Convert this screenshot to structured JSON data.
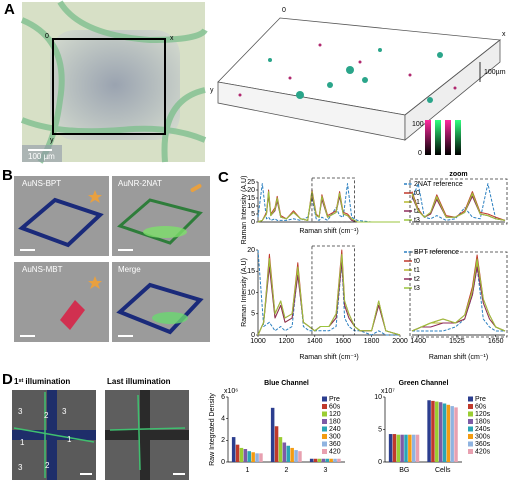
{
  "panels": {
    "A": {
      "label": "A",
      "origin": "0",
      "x_axis": "x",
      "y_axis": "y",
      "scale_bar": "100 µm",
      "volume_origin": "0",
      "volume_x": "x",
      "volume_y": "y",
      "depth_bar": "100µm",
      "colorbar_max": 100,
      "colorbar_min": 0
    },
    "B": {
      "label": "B",
      "tiles": [
        "AuNS-BPT",
        "AuNR-2NAT",
        "AuNS-MBT",
        "Merge"
      ]
    },
    "C": {
      "label": "C"
    },
    "D": {
      "label": "D",
      "images": [
        {
          "title": "1ˢᵗ illumination",
          "regions": [
            3,
            2,
            3,
            1,
            1,
            3,
            2
          ]
        },
        {
          "title": "Last illumination"
        }
      ]
    }
  },
  "chart_data": [
    {
      "type": "line",
      "y_label": "Raman Intensity (A.U)",
      "x_label": "Raman shift (cm⁻¹)",
      "xlim": [
        1000,
        2000
      ],
      "ylim": [
        0,
        25
      ],
      "yticks": [
        0,
        5,
        10,
        15,
        20,
        25
      ],
      "x": [
        1000,
        1030,
        1060,
        1075,
        1090,
        1120,
        1135,
        1160,
        1200,
        1250,
        1300,
        1350,
        1380,
        1410,
        1430,
        1450,
        1490,
        1550,
        1575,
        1600,
        1630,
        1660,
        1700,
        1800,
        1900,
        2000
      ],
      "series": [
        {
          "name": "2NAT reference",
          "color": "#2a7fc0",
          "dashed": true,
          "values": [
            3,
            24,
            2,
            3,
            1,
            2,
            1,
            1,
            1,
            2,
            1,
            3,
            15,
            2,
            1,
            3,
            1,
            9,
            4,
            3,
            24,
            3,
            1,
            0,
            0,
            0
          ]
        },
        {
          "name": "t0",
          "color": "#c0392b",
          "values": [
            0,
            1,
            6,
            20,
            5,
            9,
            16,
            4,
            2,
            7,
            2,
            1,
            20,
            5,
            3,
            17,
            4,
            7,
            19,
            6,
            5,
            2,
            0,
            0,
            0,
            0
          ]
        },
        {
          "name": "t1",
          "color": "#b5b82e",
          "values": [
            0,
            1,
            5,
            18,
            4,
            8,
            14,
            3,
            2,
            6,
            2,
            1,
            18,
            4,
            3,
            15,
            3,
            6,
            17,
            5,
            4,
            2,
            0,
            0,
            0,
            0
          ]
        },
        {
          "name": "t2",
          "color": "#8e2a5a",
          "values": [
            0,
            1,
            5,
            17,
            4,
            7,
            13,
            3,
            2,
            6,
            2,
            1,
            17,
            4,
            3,
            14,
            3,
            6,
            16,
            5,
            4,
            1,
            0,
            0,
            0,
            0
          ]
        },
        {
          "name": "t3",
          "color": "#9bc53d",
          "values": [
            0,
            1,
            5,
            19,
            4,
            8,
            15,
            3,
            2,
            6,
            2,
            1,
            19,
            4,
            3,
            16,
            3,
            6,
            18,
            5,
            4,
            2,
            0,
            0,
            0,
            0
          ]
        }
      ]
    },
    {
      "type": "line",
      "title": "zoom",
      "xlim": [
        1380,
        1680
      ],
      "ylim": [
        0,
        25
      ],
      "x": [
        1380,
        1400,
        1420,
        1440,
        1460,
        1490,
        1520,
        1550,
        1575,
        1600,
        1625,
        1650,
        1680
      ],
      "series": [
        {
          "color": "#2a7fc0",
          "dashed": true,
          "values": [
            14,
            24,
            3,
            2,
            4,
            1,
            2,
            9,
            3,
            2,
            24,
            2,
            1
          ]
        },
        {
          "color": "#c0392b",
          "values": [
            19,
            8,
            3,
            6,
            17,
            4,
            3,
            7,
            19,
            6,
            5,
            3,
            1
          ]
        },
        {
          "color": "#b5b82e",
          "values": [
            17,
            7,
            3,
            5,
            15,
            3,
            3,
            6,
            17,
            5,
            4,
            2,
            1
          ]
        },
        {
          "color": "#8e2a5a",
          "values": [
            16,
            7,
            3,
            5,
            14,
            3,
            3,
            6,
            16,
            5,
            4,
            2,
            1
          ]
        },
        {
          "color": "#9bc53d",
          "values": [
            18,
            7,
            3,
            6,
            16,
            3,
            3,
            6,
            18,
            5,
            4,
            2,
            1
          ]
        }
      ]
    },
    {
      "type": "line",
      "y_label": "Raman Intensity (A.U)",
      "x_label": "Raman shift (cm⁻¹)",
      "xlim": [
        1000,
        2000
      ],
      "ylim": [
        0,
        20
      ],
      "yticks": [
        0,
        5,
        10,
        15,
        20
      ],
      "xticks": [
        1000,
        1200,
        1400,
        1600,
        1800,
        2000
      ],
      "x": [
        1000,
        1040,
        1080,
        1120,
        1160,
        1190,
        1240,
        1280,
        1320,
        1360,
        1400,
        1440,
        1500,
        1550,
        1590,
        1610,
        1640,
        1680,
        1720,
        1800,
        1850,
        1900,
        2000
      ],
      "series": [
        {
          "name": "BPT reference",
          "color": "#2a7fc0",
          "dashed": true,
          "values": [
            20,
            2,
            3,
            1,
            2,
            1,
            2,
            15,
            2,
            1,
            1,
            1,
            1,
            2,
            17,
            4,
            2,
            1,
            1,
            0,
            1,
            0,
            0
          ]
        },
        {
          "name": "t0",
          "color": "#c0392b",
          "values": [
            0,
            3,
            19,
            5,
            8,
            4,
            5,
            17,
            3,
            2,
            1,
            2,
            2,
            5,
            20,
            8,
            5,
            2,
            1,
            1,
            8,
            1,
            0
          ]
        },
        {
          "name": "t1",
          "color": "#b5b82e",
          "values": [
            0,
            3,
            17,
            4,
            7,
            3,
            4,
            15,
            3,
            2,
            1,
            2,
            2,
            4,
            18,
            7,
            4,
            2,
            1,
            1,
            7,
            1,
            0
          ]
        },
        {
          "name": "t2",
          "color": "#8e2a5a",
          "values": [
            0,
            3,
            16,
            4,
            7,
            3,
            4,
            14,
            3,
            2,
            1,
            2,
            2,
            4,
            17,
            7,
            4,
            2,
            1,
            1,
            7,
            1,
            0
          ]
        },
        {
          "name": "t3",
          "color": "#9bc53d",
          "values": [
            0,
            3,
            18,
            5,
            8,
            4,
            5,
            16,
            3,
            2,
            1,
            2,
            2,
            5,
            19,
            8,
            5,
            2,
            1,
            1,
            8,
            1,
            0
          ]
        }
      ]
    },
    {
      "type": "line",
      "x_label": "Raman shift (cm⁻¹)",
      "xlim": [
        1380,
        1680
      ],
      "ylim": [
        0,
        20
      ],
      "xticks": [
        1400,
        1525,
        1650
      ],
      "x": [
        1380,
        1410,
        1440,
        1480,
        1520,
        1550,
        1575,
        1590,
        1610,
        1630,
        1650,
        1680
      ],
      "series": [
        {
          "color": "#2a7fc0",
          "dashed": true,
          "values": [
            1,
            1,
            1,
            1,
            2,
            4,
            10,
            17,
            4,
            2,
            1,
            1
          ]
        },
        {
          "color": "#c0392b",
          "values": [
            1,
            2,
            3,
            4,
            3,
            5,
            12,
            20,
            9,
            5,
            2,
            1
          ]
        },
        {
          "color": "#b5b82e",
          "values": [
            1,
            2,
            3,
            3,
            3,
            4,
            11,
            18,
            8,
            4,
            2,
            1
          ]
        },
        {
          "color": "#8e2a5a",
          "values": [
            1,
            2,
            2,
            3,
            3,
            4,
            10,
            17,
            8,
            4,
            2,
            1
          ]
        },
        {
          "color": "#9bc53d",
          "values": [
            1,
            2,
            3,
            4,
            3,
            5,
            11,
            19,
            9,
            5,
            2,
            1
          ]
        }
      ]
    },
    {
      "type": "bar",
      "title": "Blue Channel",
      "y_label": "Raw Integrated Density",
      "multiplier": "x10⁶",
      "categories": [
        "1",
        "2",
        "3"
      ],
      "ylim": [
        0,
        6
      ],
      "yticks": [
        0,
        2,
        4,
        6
      ],
      "series": [
        {
          "name": "Pre",
          "color": "#2c3e8f",
          "values": [
            2.3,
            5.0,
            0.3
          ]
        },
        {
          "name": "60s",
          "color": "#c0392b",
          "values": [
            1.6,
            3.3,
            0.3
          ]
        },
        {
          "name": "120",
          "color": "#9acd32",
          "values": [
            1.3,
            2.3,
            0.3
          ]
        },
        {
          "name": "180",
          "color": "#7d5ba6",
          "values": [
            1.2,
            1.8,
            0.3
          ]
        },
        {
          "name": "240",
          "color": "#2aa5b5",
          "values": [
            1.0,
            1.5,
            0.3
          ]
        },
        {
          "name": "300",
          "color": "#f39c12",
          "values": [
            0.9,
            1.3,
            0.3
          ]
        },
        {
          "name": "360",
          "color": "#8fb3e0",
          "values": [
            0.8,
            1.1,
            0.3
          ]
        },
        {
          "name": "420",
          "color": "#e8a0b0",
          "values": [
            0.8,
            1.0,
            0.3
          ]
        }
      ]
    },
    {
      "type": "bar",
      "title": "Green Channel",
      "multiplier": "x10⁷",
      "categories": [
        "BG",
        "Cells"
      ],
      "ylim": [
        0,
        10
      ],
      "yticks": [
        0,
        5,
        10
      ],
      "series": [
        {
          "name": "Pre",
          "color": "#2c3e8f",
          "values": [
            4.3,
            9.5
          ]
        },
        {
          "name": "60s",
          "color": "#c0392b",
          "values": [
            4.3,
            9.4
          ]
        },
        {
          "name": "120s",
          "color": "#9acd32",
          "values": [
            4.2,
            9.3
          ]
        },
        {
          "name": "180s",
          "color": "#7d5ba6",
          "values": [
            4.2,
            9.2
          ]
        },
        {
          "name": "240s",
          "color": "#2aa5b5",
          "values": [
            4.2,
            9.0
          ]
        },
        {
          "name": "300s",
          "color": "#f39c12",
          "values": [
            4.2,
            8.8
          ]
        },
        {
          "name": "360s",
          "color": "#8fb3e0",
          "values": [
            4.2,
            8.6
          ]
        },
        {
          "name": "420s",
          "color": "#e8a0b0",
          "values": [
            4.2,
            8.4
          ]
        }
      ]
    }
  ]
}
